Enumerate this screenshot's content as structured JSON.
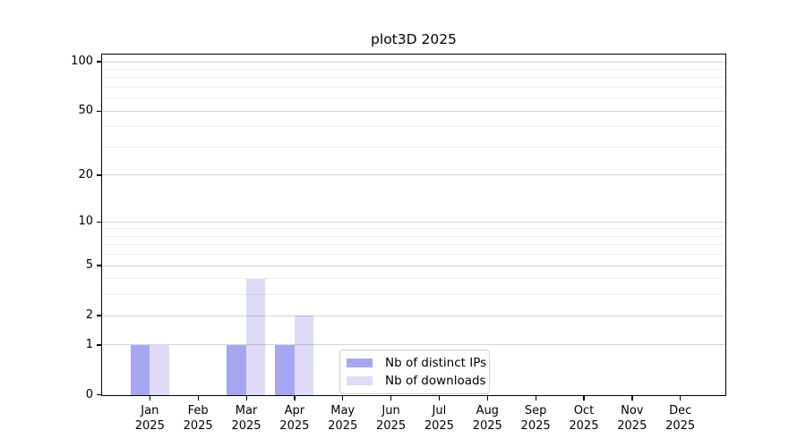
{
  "chart_data": {
    "type": "bar",
    "title": "plot3D 2025",
    "categories": [
      "Jan 2025",
      "Feb 2025",
      "Mar 2025",
      "Apr 2025",
      "May 2025",
      "Jun 2025",
      "Jul 2025",
      "Aug 2025",
      "Sep 2025",
      "Oct 2025",
      "Nov 2025",
      "Dec 2025"
    ],
    "months": [
      "Jan",
      "Feb",
      "Mar",
      "Apr",
      "May",
      "Jun",
      "Jul",
      "Aug",
      "Sep",
      "Oct",
      "Nov",
      "Dec"
    ],
    "year": "2025",
    "series": [
      {
        "name": "Nb of distinct IPs",
        "color": "#a6a6f2",
        "values": [
          1,
          0,
          1,
          1,
          0,
          0,
          0,
          0,
          0,
          0,
          0,
          0
        ]
      },
      {
        "name": "Nb of downloads",
        "color": "#dcdcf8",
        "values": [
          1,
          0,
          4,
          2,
          0,
          0,
          0,
          0,
          0,
          0,
          0,
          0
        ]
      }
    ],
    "xlabel": "",
    "ylabel": "",
    "yscale": "log1p",
    "ylim": [
      0,
      113
    ],
    "y_major_ticks": [
      0,
      1,
      2,
      5,
      10,
      20,
      50,
      100
    ],
    "y_minor_ticks": [
      3,
      4,
      6,
      7,
      8,
      9,
      30,
      40,
      60,
      70,
      80,
      90
    ],
    "grid": true,
    "legend_position": "inside-bottom-center"
  },
  "colors": {
    "grid_major": "rgba(0,0,0,0.17)",
    "grid_minor": "rgba(0,0,0,0.07)",
    "axis": "#000000",
    "legend_border": "#cccccc"
  }
}
